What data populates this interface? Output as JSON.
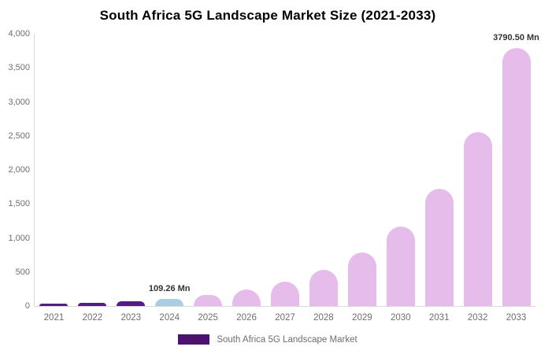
{
  "title": "South Africa 5G Landscape Market Size (2021-2033)",
  "legend": {
    "label": "South Africa 5G Landscape Market",
    "swatch_color": "#4c1272"
  },
  "colors": {
    "historical_bar": "#561b87",
    "base_year_bar": "#a9cee2",
    "forecast_bar": "#e5bcea",
    "axis_line": "#d9d9d9",
    "tick_text": "#6e6e6e",
    "annotation_text": "#333333",
    "title_text": "#000000",
    "background": "#ffffff"
  },
  "chart_data": {
    "type": "bar",
    "title": "South Africa 5G Landscape Market Size (2021-2033)",
    "unit": "Mn",
    "categories": [
      "2021",
      "2022",
      "2023",
      "2024",
      "2025",
      "2026",
      "2027",
      "2028",
      "2029",
      "2030",
      "2031",
      "2032",
      "2033"
    ],
    "values": [
      33,
      50,
      74,
      109.26,
      162,
      240,
      356,
      529,
      784,
      1162,
      1724,
      2556,
      3790.5
    ],
    "bar_roles": [
      "historical",
      "historical",
      "historical",
      "base_year",
      "forecast",
      "forecast",
      "forecast",
      "forecast",
      "forecast",
      "forecast",
      "forecast",
      "forecast",
      "forecast"
    ],
    "annotations": [
      {
        "category": "2024",
        "text": "109.26 Mn"
      },
      {
        "category": "2033",
        "text": "3790.50 Mn"
      }
    ],
    "xlabel": "",
    "ylabel": "",
    "ylim": [
      0,
      4000
    ],
    "yticks": [
      "0",
      "500",
      "1,000",
      "1,500",
      "2,000",
      "2,500",
      "3,000",
      "3,500",
      "4,000"
    ],
    "ytick_values": [
      0,
      500,
      1000,
      1500,
      2000,
      2500,
      3000,
      3500,
      4000
    ],
    "grid": false,
    "legend_position": "bottom",
    "legend_entries": [
      "South Africa 5G Landscape Market"
    ]
  }
}
